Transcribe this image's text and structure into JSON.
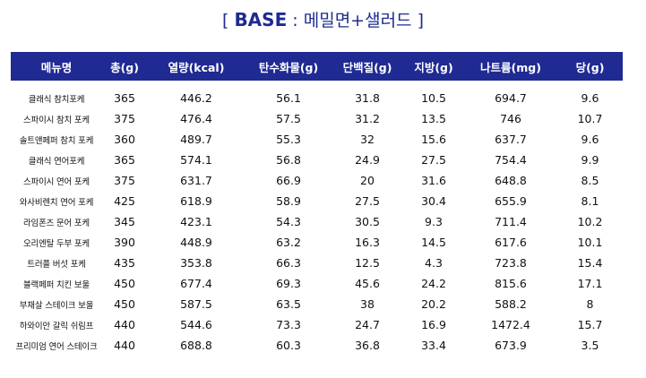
{
  "title": {
    "open": "[",
    "base": "BASE",
    "colon": ":",
    "sub": "메밀면+샐러드",
    "close": "]"
  },
  "headers": [
    "메뉴명",
    "총(g)",
    "열량(kcal)",
    "탄수화물(g)",
    "단백질(g)",
    "지방(g)",
    "나트륨(mg)",
    "당(g)"
  ],
  "rows": [
    [
      "클래식 참치포케",
      "365",
      "446.2",
      "56.1",
      "31.8",
      "10.5",
      "694.7",
      "9.6"
    ],
    [
      "스파이시 참치 포케",
      "375",
      "476.4",
      "57.5",
      "31.2",
      "13.5",
      "746",
      "10.7"
    ],
    [
      "솔트앤페퍼 참치 포케",
      "360",
      "489.7",
      "55.3",
      "32",
      "15.6",
      "637.7",
      "9.6"
    ],
    [
      "클래식 연어포케",
      "365",
      "574.1",
      "56.8",
      "24.9",
      "27.5",
      "754.4",
      "9.9"
    ],
    [
      "스파이시 연어 포케",
      "375",
      "631.7",
      "66.9",
      "20",
      "31.6",
      "648.8",
      "8.5"
    ],
    [
      "와사비렌치 연어 포케",
      "425",
      "618.9",
      "58.9",
      "27.5",
      "30.4",
      "655.9",
      "8.1"
    ],
    [
      "라임폰즈 문어 포케",
      "345",
      "423.1",
      "54.3",
      "30.5",
      "9.3",
      "711.4",
      "10.2"
    ],
    [
      "오리엔탈 두부 포케",
      "390",
      "448.9",
      "63.2",
      "16.3",
      "14.5",
      "617.6",
      "10.1"
    ],
    [
      "트러플 버섯 포케",
      "435",
      "353.8",
      "66.3",
      "12.5",
      "4.3",
      "723.8",
      "15.4"
    ],
    [
      "블랙페퍼 치킨 보울",
      "450",
      "677.4",
      "69.3",
      "45.6",
      "24.2",
      "815.6",
      "17.1"
    ],
    [
      "부채살 스테이크 보울",
      "450",
      "587.5",
      "63.5",
      "38",
      "20.2",
      "588.2",
      "8"
    ],
    [
      "하와이안 갈릭 쉬림프",
      "440",
      "544.6",
      "73.3",
      "24.7",
      "16.9",
      "1472.4",
      "15.7"
    ],
    [
      "프리미엄 연어 스테이크",
      "440",
      "688.8",
      "60.3",
      "36.8",
      "33.4",
      "673.9",
      "3.5"
    ]
  ],
  "colors": {
    "title": "#1d2b8f",
    "header_bg": "#1f2a93",
    "header_text": "#ffffff"
  }
}
